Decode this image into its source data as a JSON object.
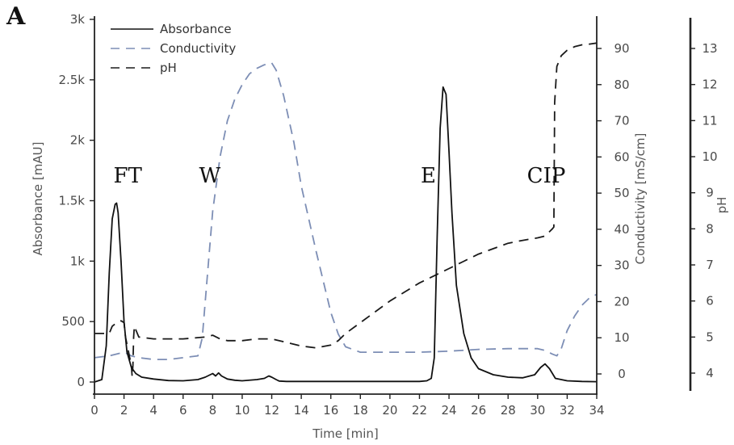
{
  "chart_data": {
    "type": "line",
    "panel_label": "A",
    "xlabel": "Time [min]",
    "xlim": [
      0,
      34
    ],
    "x_ticks": [
      0,
      2,
      4,
      6,
      8,
      10,
      12,
      14,
      16,
      18,
      20,
      22,
      24,
      26,
      28,
      30,
      32,
      34
    ],
    "y_axes": [
      {
        "id": "absorbance",
        "label": "Absorbance [mAU]",
        "lim": [
          -50,
          3000
        ],
        "ticks": [
          0,
          500,
          1000,
          1500,
          2000,
          2500,
          3000
        ],
        "tick_labels": [
          "0",
          "500",
          "1k",
          "1.5k",
          "2k",
          "2.5k",
          "3k"
        ]
      },
      {
        "id": "conductivity",
        "label": "Conductivity [mS/cm]",
        "lim": [
          -5,
          101
        ],
        "ticks": [
          0,
          10,
          20,
          30,
          40,
          50,
          60,
          70,
          80,
          90
        ],
        "tick_labels": [
          "0",
          "10",
          "20",
          "30",
          "40",
          "50",
          "60",
          "70",
          "80",
          "90"
        ]
      },
      {
        "id": "ph",
        "label": "pH",
        "lim": [
          3.8,
          14
        ],
        "ticks": [
          4,
          5,
          6,
          7,
          8,
          9,
          10,
          11,
          12,
          13
        ],
        "tick_labels": [
          "4",
          "5",
          "6",
          "7",
          "8",
          "9",
          "10",
          "11",
          "12",
          "13"
        ]
      }
    ],
    "legend": {
      "position": "top-left"
    },
    "region_labels": [
      {
        "text": "FT",
        "x": 1.5
      },
      {
        "text": "W",
        "x": 7.3
      },
      {
        "text": "E",
        "x": 22.3
      },
      {
        "text": "CIP",
        "x": 29.5
      }
    ],
    "series": [
      {
        "name": "Absorbance",
        "axis": "absorbance",
        "color": "#111111",
        "style": "solid",
        "x": [
          0,
          0.5,
          0.8,
          1.0,
          1.2,
          1.4,
          1.5,
          1.6,
          1.8,
          2.0,
          2.2,
          2.5,
          2.8,
          3.2,
          4,
          5,
          6,
          7,
          7.5,
          8,
          8.2,
          8.4,
          8.6,
          9,
          9.5,
          10,
          11,
          11.5,
          11.8,
          12,
          12.3,
          12.5,
          13,
          14,
          16,
          18,
          20,
          22,
          22.5,
          22.8,
          23.0,
          23.2,
          23.4,
          23.6,
          23.8,
          24.0,
          24.2,
          24.5,
          25,
          25.5,
          26,
          27,
          28,
          29,
          29.8,
          30.2,
          30.5,
          30.8,
          31.2,
          32,
          33,
          34
        ],
        "y": [
          0,
          20,
          300,
          900,
          1350,
          1470,
          1480,
          1400,
          1000,
          500,
          250,
          120,
          70,
          40,
          25,
          12,
          10,
          20,
          40,
          70,
          50,
          75,
          50,
          25,
          15,
          10,
          20,
          30,
          50,
          40,
          20,
          8,
          5,
          5,
          5,
          5,
          5,
          5,
          10,
          30,
          200,
          1200,
          2100,
          2440,
          2380,
          1900,
          1400,
          800,
          400,
          200,
          110,
          60,
          40,
          35,
          60,
          120,
          150,
          110,
          30,
          10,
          5,
          3
        ]
      },
      {
        "name": "Conductivity",
        "axis": "conductivity",
        "color": "#7d8eb5",
        "style": "dashed",
        "x": [
          0,
          1,
          1.5,
          2,
          2.5,
          3,
          4,
          5,
          6,
          7,
          7.3,
          7.6,
          8,
          8.5,
          9,
          9.5,
          10,
          10.5,
          11,
          11.5,
          12,
          12.3,
          12.8,
          13.5,
          14,
          15,
          16,
          16.5,
          17,
          18,
          20,
          22,
          24,
          26,
          28,
          30,
          30.5,
          31,
          31.3,
          31.6,
          32,
          32.5,
          33,
          33.5,
          34
        ],
        "y": [
          4.5,
          5,
          5.5,
          6,
          5,
          4.5,
          4,
          4,
          4.5,
          5,
          10,
          25,
          45,
          60,
          70,
          76,
          80,
          83,
          84.5,
          85.5,
          86,
          84,
          77,
          64,
          52,
          34,
          17,
          11,
          7.5,
          6,
          6,
          6,
          6.3,
          6.8,
          7,
          7,
          6.5,
          5.5,
          5,
          7,
          12,
          16,
          19,
          21,
          22
        ]
      },
      {
        "name": "pH",
        "axis": "ph",
        "color": "#1a1a1a",
        "style": "dashed",
        "x": [
          0,
          1.0,
          1.2,
          1.5,
          1.8,
          2.0,
          2.1,
          2.3,
          2.5,
          2.55,
          2.6,
          2.65,
          2.7,
          2.8,
          3,
          4,
          6,
          7.5,
          8,
          8.5,
          9,
          10,
          11,
          12,
          13,
          14,
          15,
          16,
          16.5,
          17,
          18,
          19,
          20,
          21,
          22,
          23,
          24,
          25,
          26,
          27,
          28,
          29,
          30,
          30.5,
          31,
          31.1,
          31.15,
          31.3,
          31.6,
          32,
          32.5,
          33,
          33.5,
          34
        ],
        "y": [
          5.1,
          5.1,
          5.3,
          5.4,
          5.45,
          5.4,
          5.0,
          4.6,
          4.2,
          3.9,
          4.2,
          5.0,
          5.3,
          5.2,
          5.0,
          4.95,
          4.95,
          5.0,
          5.05,
          4.95,
          4.9,
          4.9,
          4.95,
          4.95,
          4.85,
          4.75,
          4.7,
          4.78,
          4.9,
          5.1,
          5.4,
          5.7,
          6.0,
          6.25,
          6.5,
          6.7,
          6.9,
          7.1,
          7.3,
          7.45,
          7.6,
          7.68,
          7.75,
          7.8,
          8.0,
          8.05,
          11.5,
          12.5,
          12.8,
          12.95,
          13.05,
          13.1,
          13.12,
          13.15
        ]
      }
    ]
  }
}
